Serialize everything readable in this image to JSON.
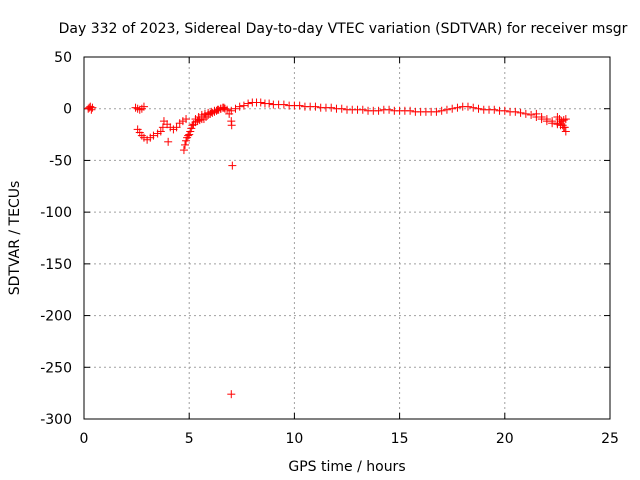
{
  "chart_data": {
    "type": "scatter",
    "title": "Day 332 of 2023, Sidereal Day-to-day VTEC variation (SDTVAR) for receiver msgr",
    "xlabel": "GPS time / hours",
    "ylabel": "SDTVAR / TECUs",
    "xlim": [
      0,
      25
    ],
    "ylim": [
      -300,
      50
    ],
    "xticks": [
      0,
      5,
      10,
      15,
      20,
      25
    ],
    "yticks": [
      50,
      0,
      -50,
      -100,
      -150,
      -200,
      -250,
      -300
    ],
    "grid": true,
    "marker": "+",
    "color": "#ff0000",
    "series": [
      {
        "name": "SDTVAR",
        "x": [
          0.2,
          0.25,
          0.3,
          0.35,
          0.4,
          2.45,
          2.55,
          2.65,
          2.75,
          2.85,
          2.55,
          2.65,
          2.75,
          2.85,
          3.0,
          3.15,
          3.3,
          3.5,
          3.65,
          3.75,
          3.8,
          3.95,
          4.1,
          4.25,
          4.4,
          4.55,
          4.7,
          4.85,
          4.0,
          4.75,
          4.8,
          4.85,
          4.9,
          4.95,
          5.0,
          5.05,
          5.1,
          5.15,
          5.2,
          5.3,
          5.4,
          5.5,
          5.6,
          5.7,
          5.8,
          5.9,
          6.0,
          6.1,
          6.2,
          6.3,
          6.4,
          6.5,
          6.6,
          6.7,
          6.8,
          6.9,
          5.3,
          5.45,
          5.6,
          5.75,
          5.9,
          6.05,
          6.2,
          6.35,
          6.5,
          6.65,
          7.0,
          7.02,
          7.05,
          7.0,
          7.0,
          7.2,
          7.4,
          7.6,
          7.8,
          8.0,
          8.2,
          8.4,
          8.6,
          8.8,
          9.0,
          9.25,
          9.5,
          9.75,
          10.0,
          10.25,
          10.5,
          10.75,
          11.0,
          11.25,
          11.5,
          11.75,
          12.0,
          12.25,
          12.5,
          12.75,
          13.0,
          13.25,
          13.5,
          13.75,
          14.0,
          14.25,
          14.5,
          14.75,
          15.0,
          15.25,
          15.5,
          15.75,
          16.0,
          16.25,
          16.5,
          16.75,
          17.0,
          17.25,
          17.5,
          17.75,
          18.0,
          18.25,
          18.5,
          18.75,
          19.0,
          19.25,
          19.5,
          19.75,
          20.0,
          20.25,
          20.5,
          20.75,
          21.0,
          21.25,
          21.5,
          21.75,
          22.0,
          22.25,
          22.5,
          22.75,
          22.85,
          21.5,
          21.75,
          22.0,
          22.25,
          22.5,
          22.65,
          22.8,
          22.9,
          22.5,
          22.6,
          22.7,
          22.8,
          22.9
        ],
        "y": [
          0,
          1,
          2,
          -1,
          1,
          1,
          0,
          -1,
          0,
          2,
          -20,
          -23,
          -26,
          -28,
          -30,
          -28,
          -26,
          -24,
          -22,
          -18,
          -12,
          -15,
          -18,
          -20,
          -18,
          -14,
          -12,
          -10,
          -32,
          -40,
          -35,
          -31,
          -28,
          -26,
          -25,
          -22,
          -19,
          -16,
          -15,
          -13,
          -12,
          -11,
          -10,
          -10,
          -8,
          -6,
          -5,
          -4,
          -3,
          -2,
          -1,
          0,
          1,
          0,
          -1,
          -5,
          -10,
          -8,
          -6,
          -5,
          -4,
          -3,
          -2,
          -1,
          0,
          1,
          -12,
          -16,
          -55,
          -276,
          -2,
          0,
          2,
          3,
          5,
          6,
          6,
          6,
          5,
          5,
          4,
          4,
          4,
          3,
          3,
          3,
          2,
          2,
          2,
          1,
          1,
          1,
          0,
          0,
          -1,
          -1,
          -1,
          -1,
          -2,
          -2,
          -2,
          -1,
          -1,
          -2,
          -2,
          -2,
          -2,
          -3,
          -3,
          -3,
          -3,
          -3,
          -2,
          -1,
          0,
          1,
          2,
          2,
          1,
          0,
          -1,
          -1,
          -1,
          -2,
          -2,
          -3,
          -3,
          -4,
          -5,
          -6,
          -8,
          -10,
          -12,
          -14,
          -15,
          -16,
          -18,
          -5,
          -8,
          -10,
          -12,
          -14,
          -16,
          -18,
          -22,
          -8,
          -10,
          -12,
          -11,
          -10
        ]
      }
    ]
  }
}
